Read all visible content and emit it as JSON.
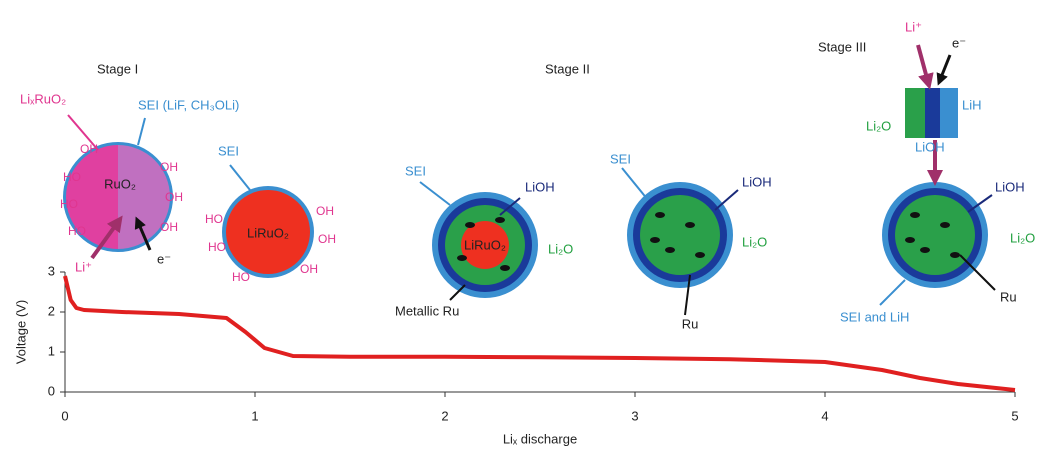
{
  "chart_data": {
    "type": "line",
    "x": [
      0,
      0.03,
      0.06,
      0.1,
      0.3,
      0.6,
      0.85,
      0.95,
      1.05,
      1.2,
      1.5,
      2,
      2.5,
      3,
      3.5,
      4,
      4.3,
      4.5,
      4.7,
      4.9,
      5
    ],
    "series": [
      {
        "color": "#e02020",
        "values": [
          2.9,
          2.3,
          2.1,
          2.05,
          2.0,
          1.95,
          1.85,
          1.5,
          1.1,
          0.9,
          0.88,
          0.88,
          0.87,
          0.85,
          0.82,
          0.75,
          0.55,
          0.35,
          0.2,
          0.1,
          0.05
        ]
      }
    ],
    "xlim": [
      0,
      5
    ],
    "ylim": [
      0,
      3
    ],
    "xticks": [
      0,
      1,
      2,
      3,
      4,
      5
    ],
    "yticks": [
      0,
      1,
      2,
      3
    ],
    "x_label": "Liₓ discharge",
    "y_label": "Voltage (V)"
  },
  "diagram": {
    "stages": [
      "Stage I",
      "Stage II",
      "Stage III"
    ],
    "hydroxyl": [
      "OH",
      "HO"
    ],
    "labels": [
      "LiₓRuO₂",
      "SEI (LiF, CH₃OLi)",
      "RuO₂",
      "Li⁺",
      "e⁻",
      "SEI",
      "LiRuO₂",
      "SEI",
      "LiOH",
      "LiRuO₂",
      "Li₂O",
      "Metallic Ru",
      "SEI",
      "LiOH",
      "Li₂O",
      "Ru",
      "Li⁺",
      "e⁻",
      "LiH",
      "Li₂O",
      "LiOH",
      "LiOH",
      "Li₂O",
      "Ru",
      "SEI and LiH"
    ]
  }
}
